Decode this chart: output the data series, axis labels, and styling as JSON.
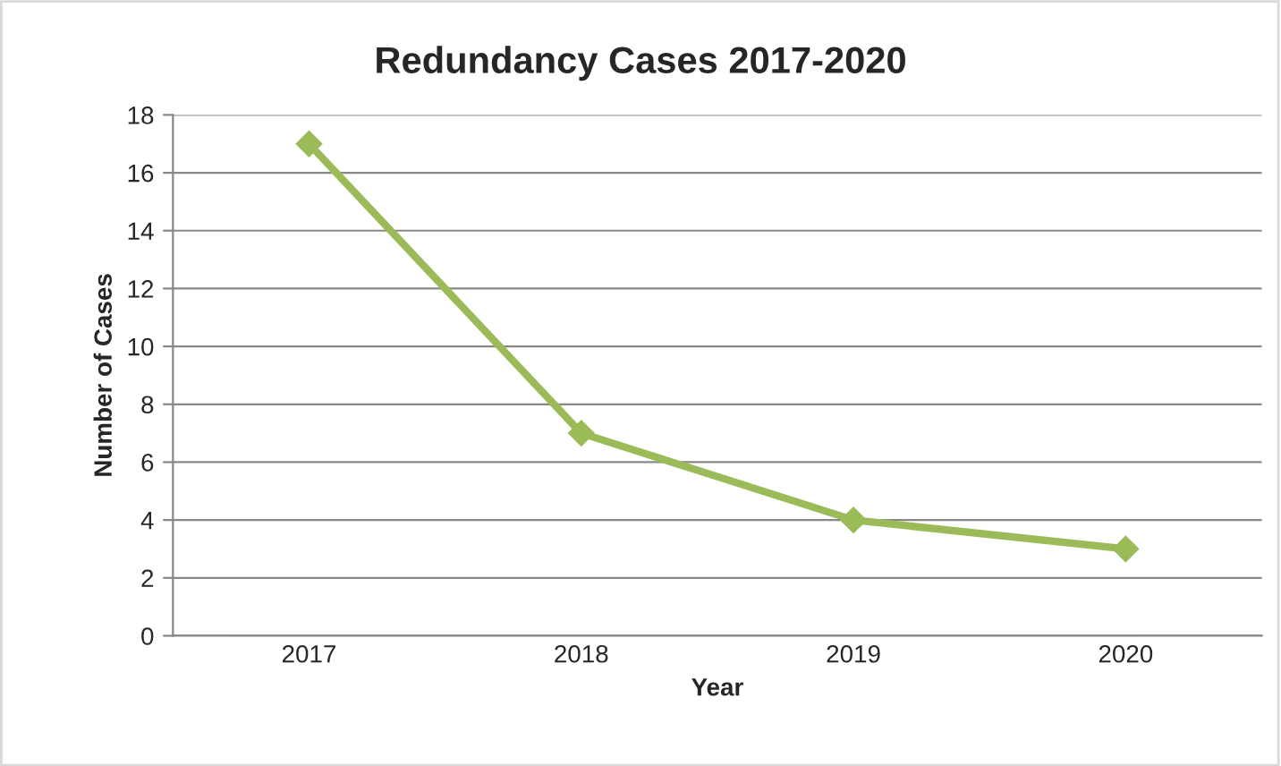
{
  "chart_data": {
    "type": "line",
    "title": "Redundancy Cases 2017-2020",
    "xlabel": "Year",
    "ylabel": "Number of Cases",
    "categories": [
      "2017",
      "2018",
      "2019",
      "2020"
    ],
    "series": [
      {
        "color": "#9bbb59",
        "values": [
          17,
          7,
          4,
          3
        ]
      }
    ],
    "ylim": [
      0,
      18
    ],
    "yticks": [
      0,
      2,
      4,
      6,
      8,
      10,
      12,
      14,
      16,
      18
    ],
    "grid": "y",
    "legend": false,
    "marker": "diamond",
    "line_style": "solid"
  }
}
